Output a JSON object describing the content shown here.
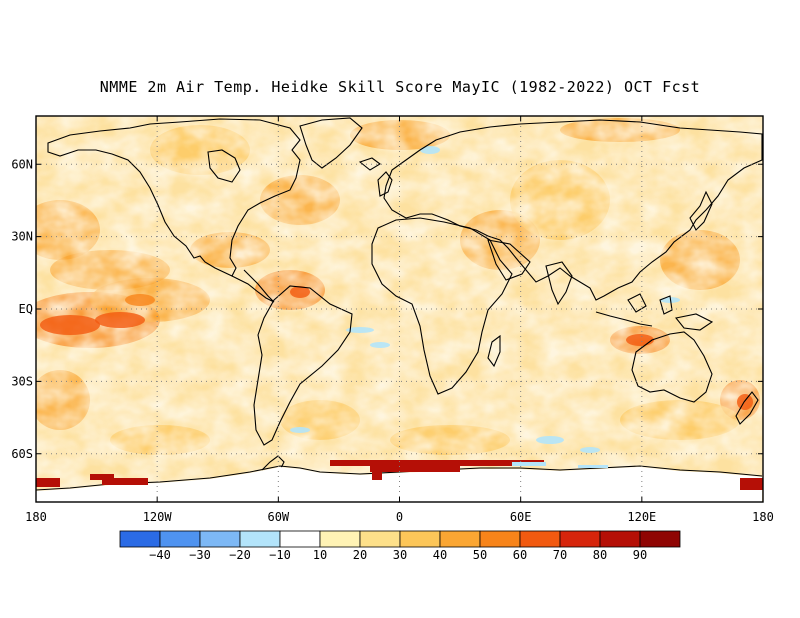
{
  "title": "NMME 2m Air Temp. Heidke Skill Score MayIC (1982-2022) OCT Fcst",
  "map": {
    "lon_ticks": [
      "180",
      "120W",
      "60W",
      "0",
      "60E",
      "120E",
      "180"
    ],
    "lat_ticks": [
      "60N",
      "30N",
      "EQ",
      "30S",
      "60S"
    ],
    "lon_range": [
      -180,
      180
    ],
    "lat_range": [
      -80,
      80
    ],
    "grid": "dotted, every 30° lat and 60° lon"
  },
  "colorbar": {
    "labels": [
      "-40",
      "-30",
      "-20",
      "-10",
      "10",
      "20",
      "30",
      "40",
      "50",
      "60",
      "70",
      "80",
      "90"
    ],
    "colors": [
      "#2b6be5",
      "#4f93f0",
      "#7db8f5",
      "#b3e4fa",
      "#ffffff",
      "#fff3b5",
      "#fde08a",
      "#fcc659",
      "#faa633",
      "#f7841a",
      "#f25a10",
      "#d6250c",
      "#b50f06",
      "#8f0503"
    ]
  }
}
